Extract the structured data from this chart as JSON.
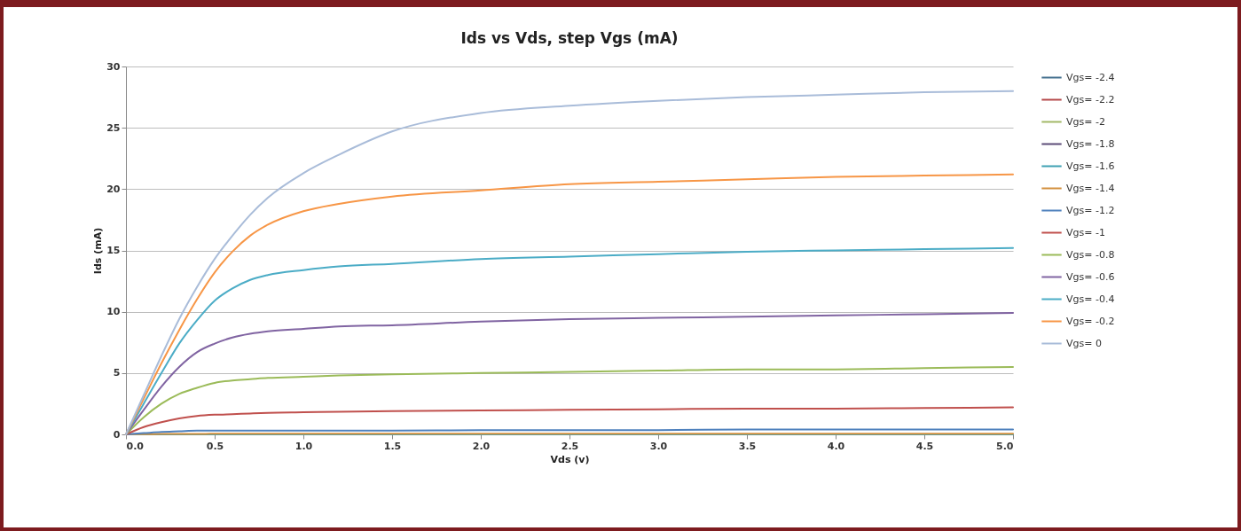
{
  "chart_data": {
    "type": "line",
    "title": "Ids vs Vds,  step Vgs   (mA)",
    "xlabel": "Vds (v)",
    "ylabel": "Ids (mA)",
    "x": [
      0,
      0.1,
      0.2,
      0.3,
      0.4,
      0.5,
      0.6,
      0.7,
      0.8,
      1.0,
      1.2,
      1.5,
      2,
      2.5,
      3,
      3.5,
      4,
      4.5,
      5
    ],
    "xlim": [
      0,
      5
    ],
    "xticks": [
      {
        "value": 0,
        "label": "0.0"
      },
      {
        "value": 0.5,
        "label": "0.5"
      },
      {
        "value": 1,
        "label": "1.0"
      },
      {
        "value": 1.5,
        "label": "1.5"
      },
      {
        "value": 2,
        "label": "2.0"
      },
      {
        "value": 2.5,
        "label": "2.5"
      },
      {
        "value": 3,
        "label": "3.0"
      },
      {
        "value": 3.5,
        "label": "3.5"
      },
      {
        "value": 4,
        "label": "4.0"
      },
      {
        "value": 4.5,
        "label": "4.5"
      },
      {
        "value": 5,
        "label": "5.0"
      }
    ],
    "ylim": [
      0,
      30
    ],
    "yticks": [
      0,
      5,
      10,
      15,
      20,
      25,
      30
    ],
    "grid": "y",
    "legend": "right",
    "marker": "none",
    "line_style": "solid",
    "series": [
      {
        "name": "Vgs= -2.4",
        "color": "#44708f",
        "values": [
          null,
          null,
          null,
          null,
          null,
          null,
          null,
          null,
          null,
          null,
          null,
          null,
          null,
          null,
          null,
          null,
          null,
          null,
          null
        ]
      },
      {
        "name": "Vgs= -2.2",
        "color": "#b5484a",
        "values": [
          null,
          null,
          null,
          null,
          null,
          null,
          null,
          null,
          null,
          null,
          null,
          null,
          null,
          null,
          null,
          null,
          null,
          null,
          null
        ]
      },
      {
        "name": "Vgs= -2",
        "color": "#a3b868",
        "values": [
          null,
          null,
          null,
          null,
          null,
          null,
          null,
          null,
          null,
          null,
          null,
          null,
          null,
          null,
          null,
          null,
          null,
          null,
          null
        ]
      },
      {
        "name": "Vgs= -1.8",
        "color": "#5c4c78",
        "values": [
          null,
          null,
          null,
          null,
          null,
          null,
          null,
          null,
          null,
          null,
          null,
          null,
          null,
          null,
          null,
          null,
          null,
          null,
          null
        ]
      },
      {
        "name": "Vgs= -1.6",
        "color": "#3fa1b3",
        "values": [
          0,
          0,
          0,
          0,
          0,
          0,
          0,
          0,
          0,
          0,
          0,
          0,
          0,
          0,
          0,
          0,
          0,
          0,
          0
        ]
      },
      {
        "name": "Vgs= -1.4",
        "color": "#d3903f",
        "values": [
          0,
          0.02,
          0.03,
          0.04,
          0.04,
          0.05,
          0.05,
          0.05,
          0.05,
          0.05,
          0.05,
          0.05,
          0.05,
          0.05,
          0.05,
          0.05,
          0.05,
          0.05,
          0.05
        ]
      },
      {
        "name": "Vgs= -1.2",
        "color": "#4f81bd",
        "values": [
          0,
          0.1,
          0.2,
          0.25,
          0.3,
          0.3,
          0.3,
          0.3,
          0.3,
          0.3,
          0.3,
          0.3,
          0.35,
          0.35,
          0.35,
          0.4,
          0.4,
          0.4,
          0.4
        ]
      },
      {
        "name": "Vgs= -1",
        "color": "#c0504d",
        "values": [
          0,
          0.6,
          1.0,
          1.3,
          1.5,
          1.6,
          1.65,
          1.7,
          1.75,
          1.8,
          1.85,
          1.9,
          1.95,
          2.0,
          2.05,
          2.1,
          2.1,
          2.15,
          2.2
        ]
      },
      {
        "name": "Vgs= -0.8",
        "color": "#9bbb59",
        "values": [
          0,
          1.4,
          2.5,
          3.3,
          3.8,
          4.2,
          4.4,
          4.5,
          4.6,
          4.7,
          4.8,
          4.9,
          5.0,
          5.1,
          5.2,
          5.3,
          5.3,
          5.4,
          5.5
        ]
      },
      {
        "name": "Vgs= -0.6",
        "color": "#8064a2",
        "values": [
          0,
          2,
          3.9,
          5.5,
          6.7,
          7.4,
          7.9,
          8.2,
          8.4,
          8.6,
          8.8,
          8.9,
          9.2,
          9.4,
          9.5,
          9.6,
          9.7,
          9.8,
          9.9
        ]
      },
      {
        "name": "Vgs= -0.4",
        "color": "#4bacc6",
        "values": [
          0,
          2.5,
          5,
          7.4,
          9.3,
          10.9,
          11.9,
          12.6,
          13.0,
          13.4,
          13.7,
          13.9,
          14.3,
          14.5,
          14.7,
          14.9,
          15.0,
          15.1,
          15.2
        ]
      },
      {
        "name": "Vgs= -0.2",
        "color": "#f79646",
        "values": [
          0,
          2.9,
          5.8,
          8.5,
          11,
          13.2,
          14.9,
          16.2,
          17.1,
          18.2,
          18.8,
          19.4,
          19.9,
          20.4,
          20.6,
          20.8,
          21.0,
          21.1,
          21.2
        ]
      },
      {
        "name": "Vgs= 0",
        "color": "#a9bcd9",
        "values": [
          0,
          3.2,
          6.4,
          9.4,
          12,
          14.3,
          16.2,
          17.9,
          19.3,
          21.3,
          22.8,
          24.7,
          26.2,
          26.8,
          27.2,
          27.5,
          27.7,
          27.9,
          28.0
        ]
      }
    ]
  }
}
